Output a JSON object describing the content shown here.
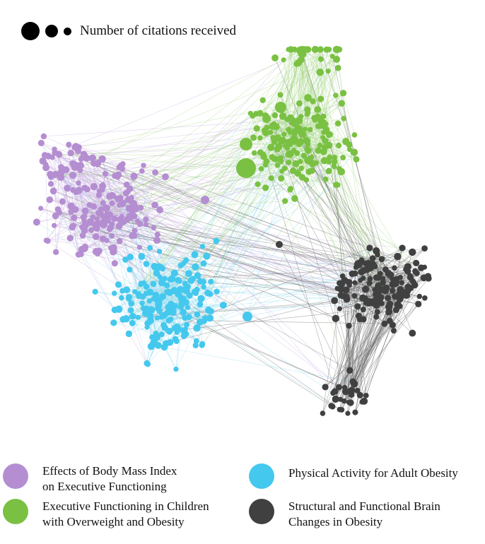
{
  "size_legend": {
    "label": "Number of citations received"
  },
  "clusters": [
    {
      "id": "bmi",
      "name_line1": "Effects of Body Mass Index",
      "name_line2": "on Executive Functioning",
      "color": "#b48ed1"
    },
    {
      "id": "pa",
      "name_line1": "Physical Activity for Adult Obesity",
      "name_line2": "",
      "color": "#45c8ee"
    },
    {
      "id": "child",
      "name_line1": "Executive Functioning in Children",
      "name_line2": "with Overweight and Obesity",
      "color": "#7ac143"
    },
    {
      "id": "brain",
      "name_line1": "Structural and Functional Brain",
      "name_line2": "Changes in Obesity",
      "color": "#404040"
    }
  ]
}
